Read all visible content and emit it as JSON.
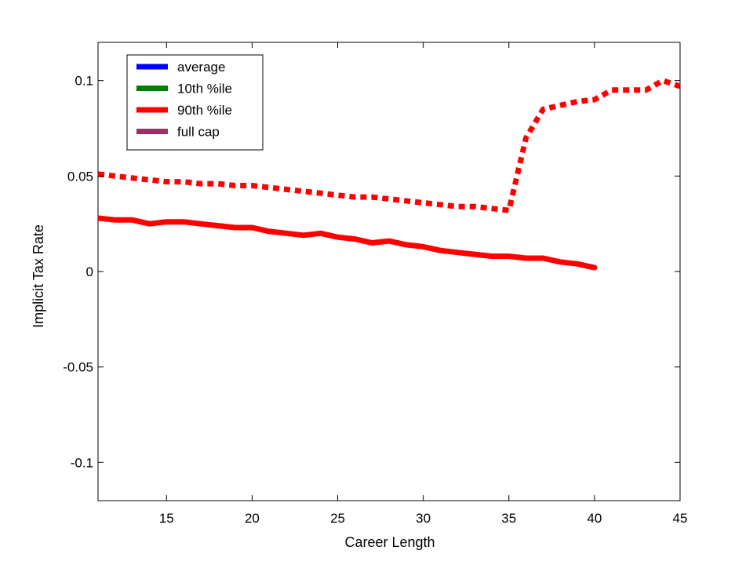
{
  "chart_data": {
    "type": "line",
    "xlabel": "Career Length",
    "ylabel": "Implicit Tax Rate",
    "xlim": [
      11,
      45
    ],
    "ylim": [
      -0.12,
      0.12
    ],
    "xticks": [
      15,
      20,
      25,
      30,
      35,
      40,
      45
    ],
    "yticks": [
      0.1,
      0.05,
      0,
      -0.05,
      -0.1
    ],
    "ytick_labels": [
      "0.1",
      "0.05",
      "0",
      "-0.05",
      "-0.1"
    ],
    "grid": false,
    "legend_position": "top-left",
    "legend": [
      {
        "label": "average",
        "color": "#0000ff"
      },
      {
        "label": "10th %ile",
        "color": "#008000"
      },
      {
        "label": "90th %ile",
        "color": "#ff0000"
      },
      {
        "label": "full cap",
        "color": "#993366"
      }
    ],
    "series": [
      {
        "style": "solid",
        "color": "#ff0000",
        "x": [
          11,
          12,
          13,
          14,
          15,
          16,
          17,
          18,
          19,
          20,
          21,
          22,
          23,
          24,
          25,
          26,
          27,
          28,
          29,
          30,
          31,
          32,
          33,
          34,
          35,
          36,
          37,
          38,
          39,
          40
        ],
        "y": [
          0.028,
          0.027,
          0.027,
          0.025,
          0.026,
          0.026,
          0.025,
          0.024,
          0.023,
          0.023,
          0.021,
          0.02,
          0.019,
          0.02,
          0.018,
          0.017,
          0.015,
          0.016,
          0.014,
          0.013,
          0.011,
          0.01,
          0.009,
          0.008,
          0.008,
          0.007,
          0.007,
          0.005,
          0.004,
          0.002
        ]
      },
      {
        "style": "dotted",
        "color": "#ff0000",
        "x": [
          11,
          12,
          13,
          14,
          15,
          16,
          17,
          18,
          19,
          20,
          21,
          22,
          23,
          24,
          25,
          26,
          27,
          28,
          29,
          30,
          31,
          32,
          33,
          34,
          35,
          36,
          37,
          38,
          39,
          40,
          41,
          42,
          43,
          44,
          45
        ],
        "y": [
          0.051,
          0.05,
          0.049,
          0.048,
          0.047,
          0.047,
          0.046,
          0.046,
          0.045,
          0.045,
          0.044,
          0.043,
          0.042,
          0.041,
          0.04,
          0.039,
          0.039,
          0.038,
          0.037,
          0.036,
          0.035,
          0.034,
          0.034,
          0.033,
          0.032,
          0.07,
          0.085,
          0.087,
          0.089,
          0.09,
          0.095,
          0.095,
          0.095,
          0.1,
          0.097
        ]
      }
    ]
  }
}
